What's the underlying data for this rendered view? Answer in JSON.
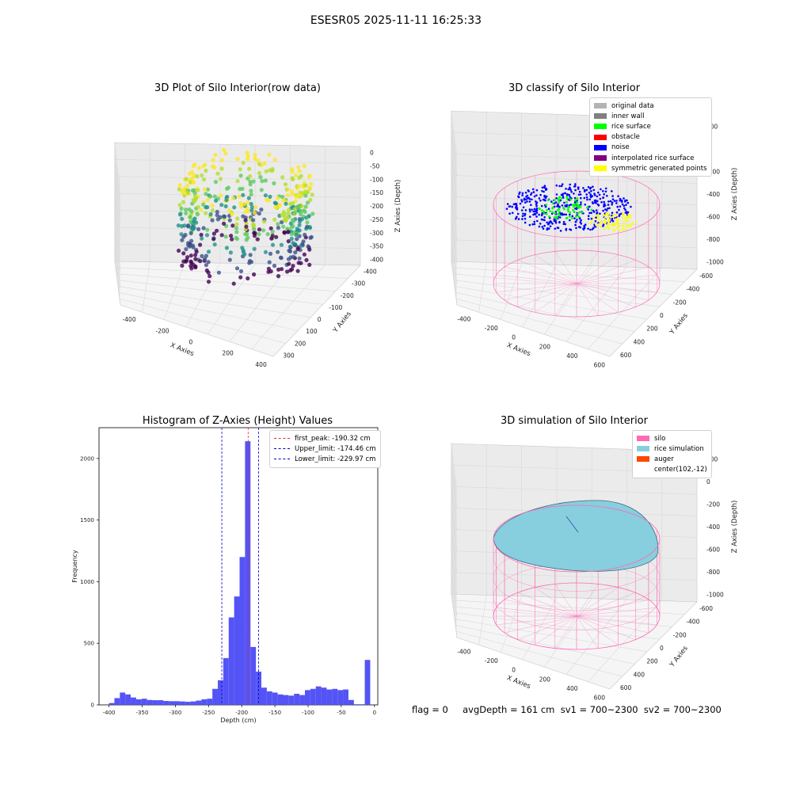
{
  "figure": {
    "suptitle": "ESESR05 2025-11-11 16:25:33",
    "footer": "flag = 0     avgDepth = 161 cm  sv1 = 700~2300  sv2 = 700~2300"
  },
  "colors": {
    "hist_bar": "#4b4bf5",
    "peak_line": "#e03020",
    "limit_line": "#0000cc",
    "silo": "#ff69b4",
    "rice": "#87cedf",
    "auger": "#ff4500",
    "pane": "#f2f2f2",
    "grid": "#d9d9d9"
  },
  "panels": {
    "raw": {
      "title": "3D Plot of Silo Interior(row data)",
      "xlabel": "X Axies",
      "ylabel": "Y Axies",
      "zlabel": "Z Axies (Depth)",
      "xticks": [
        "-400",
        "-200",
        "0",
        "200",
        "400"
      ],
      "yticks": [
        "-400",
        "-300",
        "-200",
        "-100",
        "0",
        "100",
        "200",
        "300"
      ],
      "zticks": [
        "0",
        "-50",
        "-100",
        "-150",
        "-200",
        "-250",
        "-300",
        "-350",
        "-400"
      ]
    },
    "classify": {
      "title": "3D classify of Silo Interior",
      "xlabel": "X Axies",
      "ylabel": "Y Axies",
      "zlabel": "Z Axies (Depth)",
      "xticks": [
        "-400",
        "-200",
        "0",
        "200",
        "400",
        "600"
      ],
      "yticks": [
        "-600",
        "-400",
        "-200",
        "0",
        "200",
        "400",
        "600"
      ],
      "zticks": [
        "200",
        "0",
        "-200",
        "-400",
        "-600",
        "-800",
        "-1000"
      ],
      "legend": [
        {
          "label": "original data",
          "color": "#b3b3b3"
        },
        {
          "label": "inner wall",
          "color": "#808080"
        },
        {
          "label": "rice surface",
          "color": "#00ff00"
        },
        {
          "label": "obstacle",
          "color": "#ff0000"
        },
        {
          "label": "noise",
          "color": "#0000ff"
        },
        {
          "label": "interpolated rice surface",
          "color": "#800080"
        },
        {
          "label": "symmetric generated points",
          "color": "#ffff00"
        }
      ]
    },
    "simulation": {
      "title": "3D simulation of Silo Interior",
      "xlabel": "X Axies",
      "ylabel": "Y Axies",
      "zlabel": "Z Axies (Depth)",
      "xticks": [
        "-400",
        "-200",
        "0",
        "200",
        "400",
        "600"
      ],
      "yticks": [
        "-600",
        "-400",
        "-200",
        "0",
        "200",
        "400",
        "600"
      ],
      "zticks": [
        "200",
        "0",
        "-200",
        "-400",
        "-600",
        "-800",
        "-1000"
      ],
      "legend": [
        {
          "label": "silo",
          "color": "#ff69b4"
        },
        {
          "label": "rice simulation",
          "color": "#87cedf"
        },
        {
          "label": "auger",
          "color": "#ff4500"
        },
        {
          "label": "center(102,-12)",
          "color": ""
        }
      ]
    }
  },
  "chart_data": {
    "type": "bar",
    "title": "Histogram of Z-Axies (Height) Values",
    "xlabel": "Depth (cm)",
    "ylabel": "Frequency",
    "xlim": [
      -415,
      5
    ],
    "ylim": [
      0,
      2250
    ],
    "xticks": [
      -400,
      -350,
      -300,
      -250,
      -200,
      -150,
      -100,
      -50,
      0
    ],
    "yticks": [
      0,
      500,
      1000,
      1500,
      2000
    ],
    "bin_width": 8.2,
    "bin_starts": [
      -400,
      -391.8,
      -383.6,
      -375.4,
      -367.2,
      -359,
      -350.8,
      -342.6,
      -334.4,
      -326.2,
      -318,
      -309.8,
      -301.6,
      -293.4,
      -285.2,
      -277,
      -268.8,
      -260.6,
      -252.4,
      -244.2,
      -236,
      -227.8,
      -219.6,
      -211.4,
      -203.2,
      -195,
      -186.8,
      -178.6,
      -170.4,
      -162.2,
      -154,
      -145.8,
      -137.6,
      -129.4,
      -121.2,
      -113,
      -104.8,
      -96.6,
      -88.4,
      -80.2,
      -72,
      -63.8,
      -55.6,
      -47.4,
      -39.2,
      -31,
      -22.8,
      -14.6,
      -6.4
    ],
    "counts": [
      15,
      55,
      100,
      85,
      60,
      45,
      50,
      40,
      38,
      38,
      32,
      30,
      30,
      28,
      25,
      28,
      35,
      45,
      50,
      130,
      200,
      380,
      710,
      880,
      1200,
      2140,
      470,
      270,
      140,
      110,
      100,
      85,
      80,
      75,
      90,
      80,
      120,
      130,
      150,
      140,
      125,
      130,
      120,
      125,
      40,
      5,
      5,
      365,
      0
    ],
    "vlines": [
      {
        "label": "first_peak: -190.32 cm",
        "x": -190.32,
        "color": "#e03020"
      },
      {
        "label": "Upper_limit: -174.46 cm",
        "x": -174.46,
        "color": "#0000cc"
      },
      {
        "label": "Lower_limit: -229.97 cm",
        "x": -229.97,
        "color": "#0000cc"
      }
    ],
    "legend_position": "upper right"
  }
}
